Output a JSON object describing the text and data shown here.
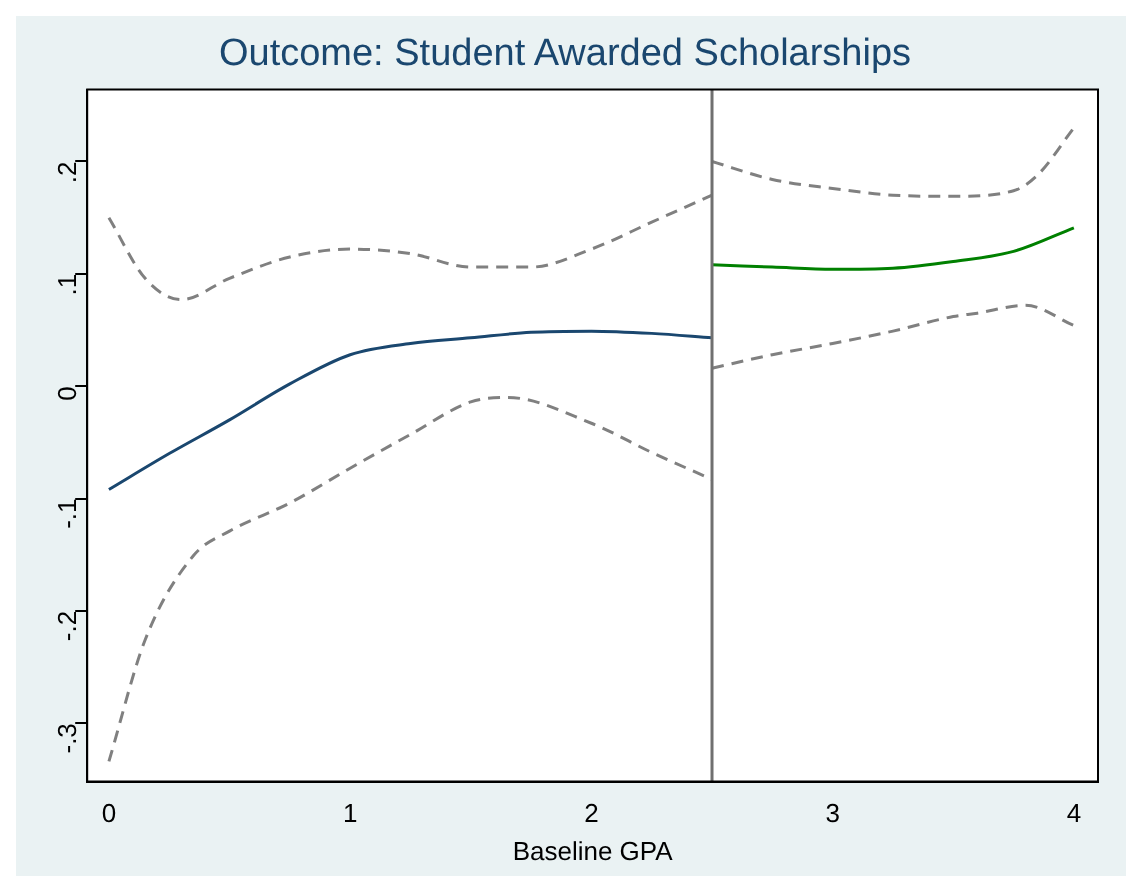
{
  "chart_data": {
    "type": "line",
    "title": "Outcome: Student Awarded Scholarships",
    "xlabel": "Baseline GPA",
    "xlim": [
      -0.09,
      4.1
    ],
    "xticks": [
      0,
      1,
      2,
      3,
      4
    ],
    "ylim": [
      -0.352,
      0.264
    ],
    "yticks": [
      {
        "value": -0.3,
        "label": "-.3"
      },
      {
        "value": -0.2,
        "label": "-.2"
      },
      {
        "value": -0.1,
        "label": "-.1"
      },
      {
        "value": 0,
        "label": "0"
      },
      {
        "value": 0.1,
        "label": ".1"
      },
      {
        "value": 0.2,
        "label": ".2"
      }
    ],
    "grid": false,
    "legend": false,
    "marker": "none",
    "ref_lines": [
      {
        "axis": "x",
        "value": 2.5,
        "color": "#707070"
      }
    ],
    "series": [
      {
        "color": "#1a476f",
        "line_style": "solid",
        "x": [
          0,
          0.25,
          0.5,
          0.75,
          1,
          1.25,
          1.5,
          1.75,
          2,
          2.25,
          2.5
        ],
        "values": [
          -0.092,
          -0.06,
          -0.03,
          0.002,
          0.028,
          0.038,
          0.043,
          0.048,
          0.049,
          0.047,
          0.043
        ]
      },
      {
        "color": "#808080",
        "line_style": "dashed",
        "x": [
          0,
          0.15,
          0.3,
          0.5,
          0.75,
          1,
          1.25,
          1.5,
          1.75,
          2,
          2.25,
          2.5
        ],
        "values": [
          0.15,
          0.096,
          0.077,
          0.096,
          0.115,
          0.122,
          0.118,
          0.106,
          0.106,
          0.122,
          0.146,
          0.17
        ]
      },
      {
        "color": "#808080",
        "line_style": "dashed",
        "x": [
          0,
          0.15,
          0.35,
          0.5,
          0.75,
          1,
          1.25,
          1.5,
          1.65,
          2,
          2.25,
          2.5
        ],
        "values": [
          -0.334,
          -0.226,
          -0.151,
          -0.129,
          -0.104,
          -0.073,
          -0.043,
          -0.014,
          -0.01,
          -0.033,
          -0.059,
          -0.083
        ]
      },
      {
        "color": "#008000",
        "line_style": "solid",
        "x": [
          2.5,
          2.75,
          3,
          3.25,
          3.5,
          3.75,
          4
        ],
        "values": [
          0.108,
          0.106,
          0.104,
          0.105,
          0.111,
          0.12,
          0.141
        ]
      },
      {
        "color": "#808080",
        "line_style": "dashed",
        "x": [
          2.5,
          2.75,
          3,
          3.25,
          3.5,
          3.75,
          3.85,
          4
        ],
        "values": [
          0.2,
          0.184,
          0.176,
          0.17,
          0.169,
          0.174,
          0.188,
          0.23
        ]
      },
      {
        "color": "#808080",
        "line_style": "dashed",
        "x": [
          2.5,
          2.75,
          3,
          3.25,
          3.5,
          3.6,
          3.8,
          4
        ],
        "values": [
          0.016,
          0.028,
          0.038,
          0.049,
          0.062,
          0.065,
          0.072,
          0.054
        ]
      }
    ]
  }
}
